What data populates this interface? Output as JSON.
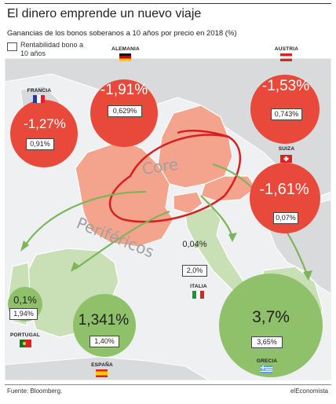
{
  "title": "El dinero emprende un nuevo viaje",
  "subtitle": "Ganancias de los bonos soberanos a 10 años por precio en 2018 (%)",
  "legend": "Rentabilidad bono a 10 años",
  "source": "Fuente: Bloomberg.",
  "brand": "elEconomista",
  "map_labels": {
    "core": "Core",
    "periphery": "Periféricos"
  },
  "colors": {
    "core": "#e8493a",
    "periphery": "#8fc06a",
    "land_core": "#f4a38c",
    "land_periphery": "#c9e0b6",
    "land_other": "#d9dadc",
    "sea": "#eef0f2"
  },
  "chart_data": {
    "type": "bubble-map",
    "title": "El dinero emprende un nuevo viaje",
    "subtitle": "Ganancias de los bonos soberanos a 10 años por precio en 2018 (%)",
    "groups": [
      "Core",
      "Periféricos"
    ],
    "countries": [
      {
        "name": "Alemania",
        "group": "Core",
        "price_gain": "-1,91%",
        "yield": "0,629%",
        "value": -1.91
      },
      {
        "name": "Austria",
        "group": "Core",
        "price_gain": "-1,53%",
        "yield": "0,743%",
        "value": -1.53
      },
      {
        "name": "Francia",
        "group": "Core",
        "price_gain": "-1,27%",
        "yield": "0,91%",
        "value": -1.27
      },
      {
        "name": "Suiza",
        "group": "Core",
        "price_gain": "-1,61%",
        "yield": "0,07%",
        "value": -1.61
      },
      {
        "name": "Italia",
        "group": "Periféricos",
        "price_gain": "0,04%",
        "yield": "2,0%",
        "value": 0.04
      },
      {
        "name": "Portugal",
        "group": "Periféricos",
        "price_gain": "0,1%",
        "yield": "1,94%",
        "value": 0.1
      },
      {
        "name": "España",
        "group": "Periféricos",
        "price_gain": "1,341%",
        "yield": "1,40%",
        "value": 1.341
      },
      {
        "name": "Grecia",
        "group": "Periféricos",
        "price_gain": "3,7%",
        "yield": "3,65%",
        "value": 3.7
      }
    ]
  }
}
